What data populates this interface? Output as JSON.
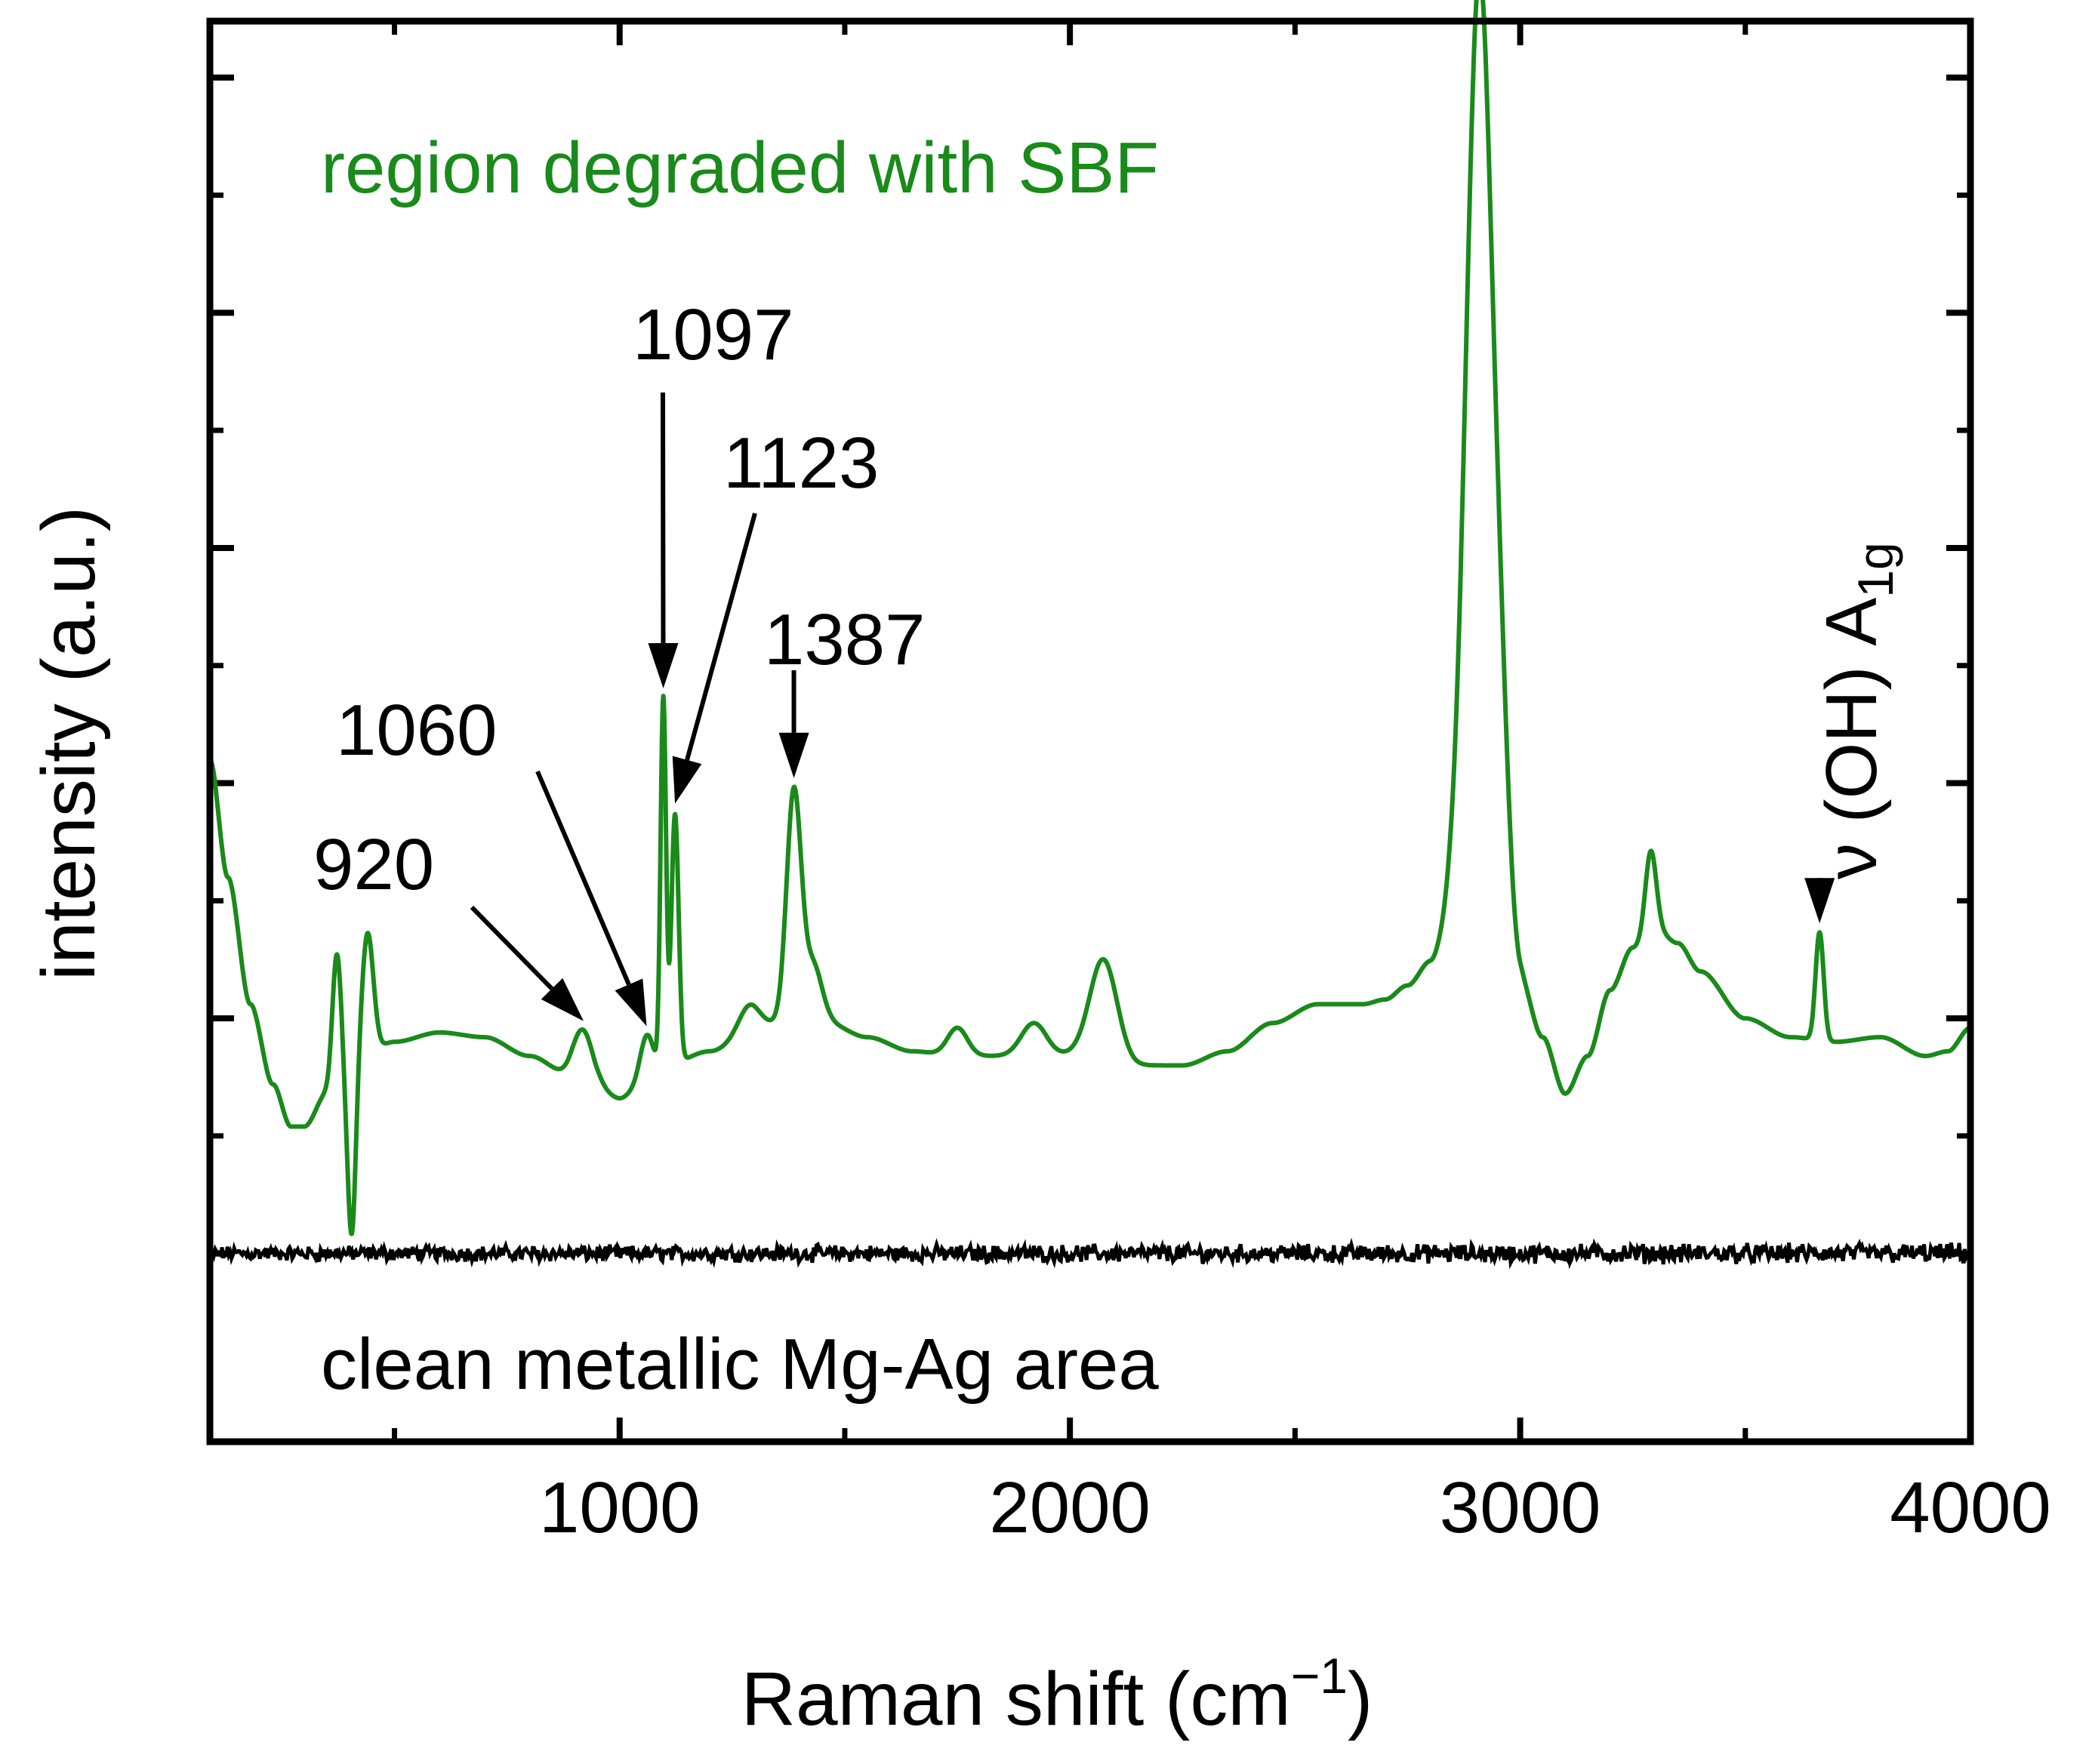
{
  "chart_data": {
    "type": "line",
    "xlabel": "Raman shift",
    "xlabel_unit": {
      "base": "cm",
      "sup": "−1",
      "open": "(",
      "close": ")"
    },
    "ylabel": "intensity (a.u.)",
    "xlim": [
      90,
      4000
    ],
    "ylim": [
      -4.0,
      26.2
    ],
    "x_ticks": [
      1000,
      2000,
      3000,
      4000
    ],
    "x_tick_labels": [
      "1000",
      "2000",
      "3000",
      "4000"
    ],
    "x_minor_ticks": [
      500,
      1500,
      2500,
      3500
    ],
    "y_ticks": [
      0,
      5,
      10,
      15,
      20,
      25
    ],
    "y_minor_ticks": [
      2.5,
      7.5,
      12.5,
      17.5,
      22.5
    ],
    "series": [
      {
        "name": "region degraded with SBF",
        "color": "#1a8a1a",
        "baseline_points": [
          [
            90,
            10.5
          ],
          [
            130,
            8.0
          ],
          [
            180,
            5.3
          ],
          [
            230,
            3.6
          ],
          [
            270,
            2.7
          ],
          [
            300,
            2.7
          ],
          [
            350,
            3.4
          ],
          [
            500,
            4.5
          ],
          [
            600,
            4.7
          ],
          [
            700,
            4.6
          ],
          [
            800,
            4.2
          ],
          [
            890,
            3.8
          ],
          [
            950,
            3.5
          ],
          [
            1000,
            3.3
          ],
          [
            1050,
            3.6
          ],
          [
            1100,
            4.0
          ],
          [
            1200,
            4.3
          ],
          [
            1300,
            4.7
          ],
          [
            1380,
            5.0
          ],
          [
            1460,
            4.9
          ],
          [
            1550,
            4.6
          ],
          [
            1650,
            4.3
          ],
          [
            1750,
            4.2
          ],
          [
            1850,
            4.2
          ],
          [
            1950,
            4.2
          ],
          [
            2050,
            4.3
          ],
          [
            2150,
            4.0
          ],
          [
            2250,
            4.0
          ],
          [
            2350,
            4.3
          ],
          [
            2450,
            4.9
          ],
          [
            2550,
            5.3
          ],
          [
            2650,
            5.3
          ],
          [
            2700,
            5.4
          ],
          [
            2750,
            5.7
          ],
          [
            2800,
            6.2
          ],
          [
            2850,
            7.0
          ],
          [
            2900,
            7.2
          ],
          [
            2950,
            6.8
          ],
          [
            3000,
            5.8
          ],
          [
            3050,
            4.6
          ],
          [
            3100,
            3.4
          ],
          [
            3150,
            4.2
          ],
          [
            3200,
            5.6
          ],
          [
            3250,
            6.5
          ],
          [
            3300,
            6.9
          ],
          [
            3350,
            6.6
          ],
          [
            3400,
            6.0
          ],
          [
            3500,
            5.0
          ],
          [
            3600,
            4.6
          ],
          [
            3700,
            4.5
          ],
          [
            3800,
            4.6
          ],
          [
            3900,
            4.2
          ],
          [
            3950,
            4.3
          ],
          [
            4000,
            4.8
          ]
        ],
        "peaks": [
          {
            "x": 372,
            "height": 2.9,
            "width": 10
          },
          {
            "x": 440,
            "height": 2.7,
            "width": 13
          },
          {
            "x": 920,
            "height": 1.1,
            "width": 22
          },
          {
            "x": 1060,
            "height": 1.0,
            "width": 14
          },
          {
            "x": 1097,
            "height": 7.8,
            "width": 6
          },
          {
            "x": 1123,
            "height": 5.3,
            "width": 8
          },
          {
            "x": 1290,
            "height": 0.6,
            "width": 25
          },
          {
            "x": 1387,
            "height": 4.8,
            "width": 16
          },
          {
            "x": 1430,
            "height": 1.2,
            "width": 20
          },
          {
            "x": 1750,
            "height": 0.6,
            "width": 22
          },
          {
            "x": 1920,
            "height": 0.7,
            "width": 28
          },
          {
            "x": 2075,
            "height": 2.0,
            "width": 30
          },
          {
            "x": 2910,
            "height": 20.0,
            "width": 30
          },
          {
            "x": 2960,
            "height": 2.0,
            "width": 18
          },
          {
            "x": 3290,
            "height": 1.7,
            "width": 12
          },
          {
            "x": 3665,
            "height": 2.3,
            "width": 9
          }
        ],
        "dips": [
          {
            "x": 405,
            "depth": 3.4,
            "width": 9
          }
        ]
      },
      {
        "name": "clean metallic Mg-Ag area",
        "color": "#000000",
        "baseline": 0,
        "noise_amplitude": 0.12
      }
    ],
    "annotations": [
      {
        "text": "region degraded with SBF",
        "color": "#1a8a1a"
      },
      {
        "text": "clean metallic Mg-Ag area",
        "color": "#000000"
      },
      {
        "text": "920",
        "peak_x": 920
      },
      {
        "text": "1060",
        "peak_x": 1060
      },
      {
        "text": "1097",
        "peak_x": 1097
      },
      {
        "text": "1123",
        "peak_x": 1123
      },
      {
        "text": "1387",
        "peak_x": 1387
      },
      {
        "text": "ν (OH) A",
        "sub": "1g",
        "peak_x": 3665
      }
    ]
  }
}
